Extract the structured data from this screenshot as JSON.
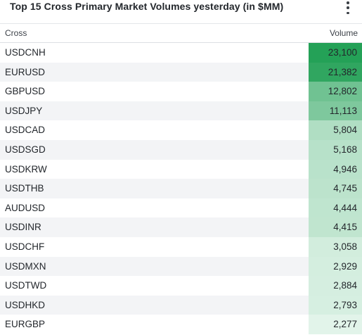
{
  "header": {
    "title": "Top 15 Cross Primary Market Volumes yesterday (in $MM)"
  },
  "table": {
    "columns": [
      "Cross",
      "Volume"
    ],
    "rows": [
      {
        "cross": "USDCNH",
        "volume": "23,100",
        "volume_value": 23100
      },
      {
        "cross": "EURUSD",
        "volume": "21,382",
        "volume_value": 21382
      },
      {
        "cross": "GBPUSD",
        "volume": "12,802",
        "volume_value": 12802
      },
      {
        "cross": "USDJPY",
        "volume": "11,113",
        "volume_value": 11113
      },
      {
        "cross": "USDCAD",
        "volume": "5,804",
        "volume_value": 5804
      },
      {
        "cross": "USDSGD",
        "volume": "5,168",
        "volume_value": 5168
      },
      {
        "cross": "USDKRW",
        "volume": "4,946",
        "volume_value": 4946
      },
      {
        "cross": "USDTHB",
        "volume": "4,745",
        "volume_value": 4745
      },
      {
        "cross": "AUDUSD",
        "volume": "4,444",
        "volume_value": 4444
      },
      {
        "cross": "USDINR",
        "volume": "4,415",
        "volume_value": 4415
      },
      {
        "cross": "USDCHF",
        "volume": "3,058",
        "volume_value": 3058
      },
      {
        "cross": "USDMXN",
        "volume": "2,929",
        "volume_value": 2929
      },
      {
        "cross": "USDTWD",
        "volume": "2,884",
        "volume_value": 2884
      },
      {
        "cross": "USDHKD",
        "volume": "2,793",
        "volume_value": 2793
      },
      {
        "cross": "EURGBP",
        "volume": "2,277",
        "volume_value": 2277
      }
    ]
  },
  "icons": {
    "menu": "more-vertical-icon"
  },
  "colors": {
    "heat_high": "#24a157",
    "heat_low": "#e2f4ea",
    "row_alt": "#f3f4f6"
  }
}
